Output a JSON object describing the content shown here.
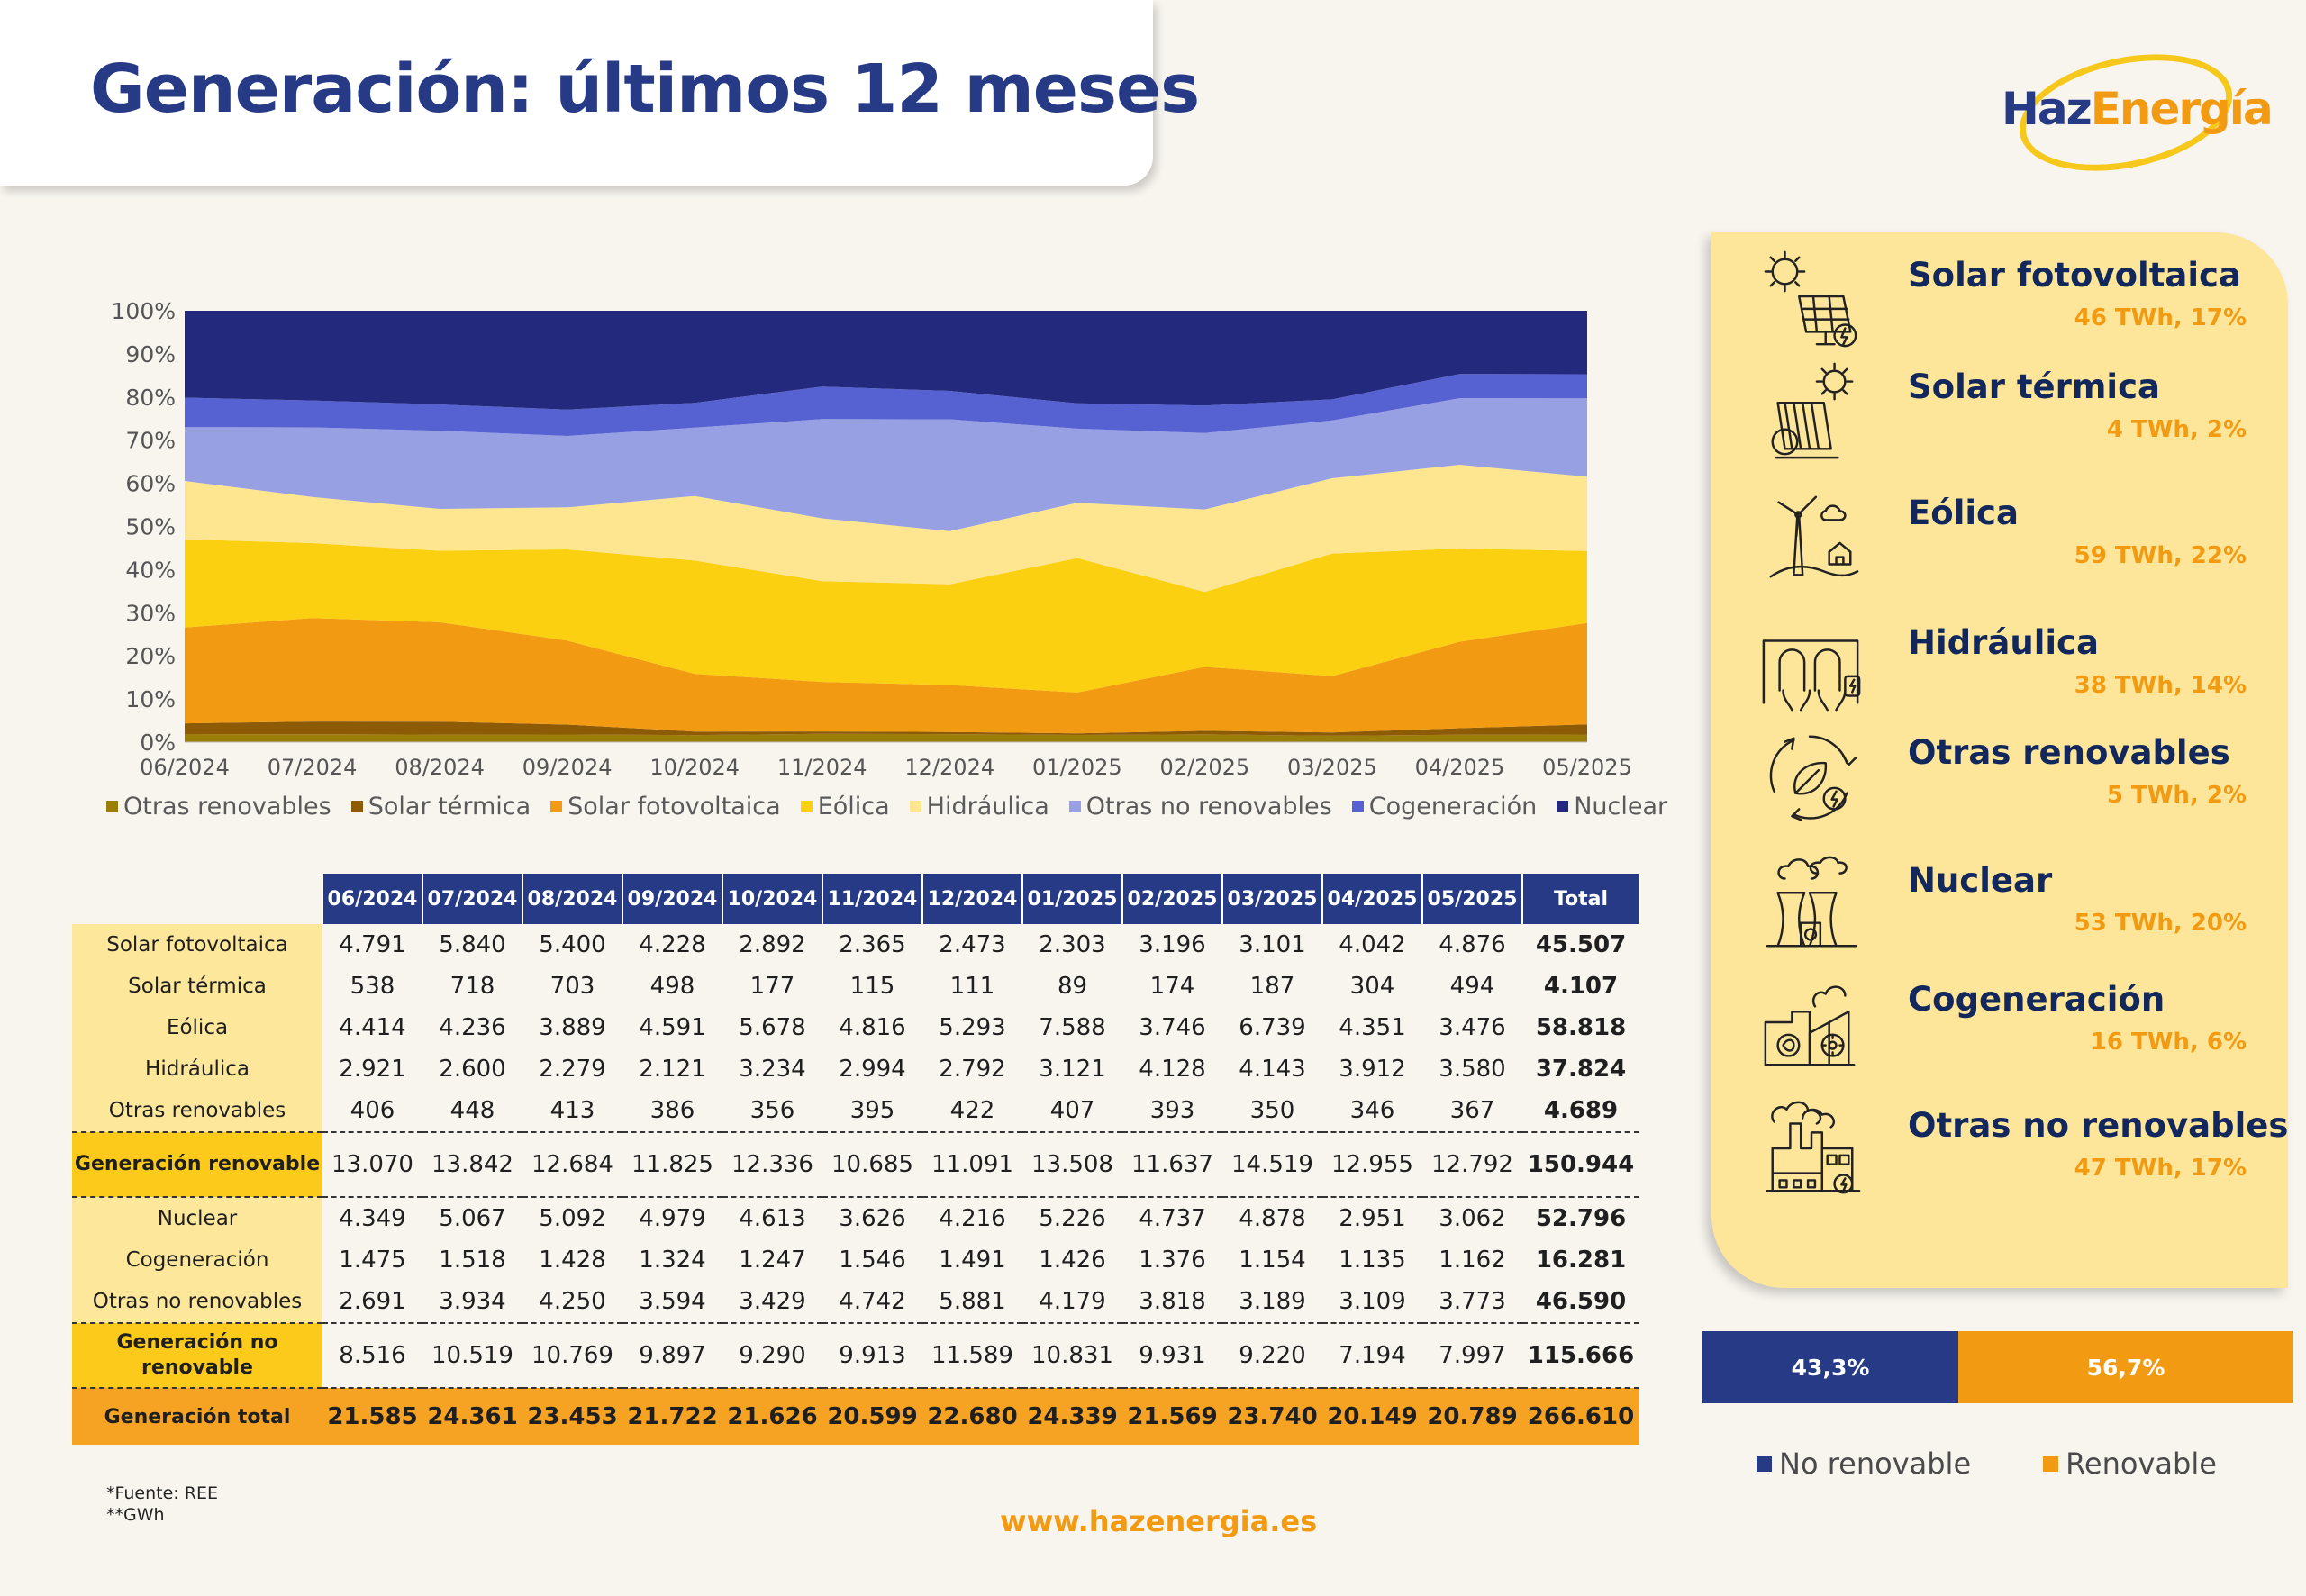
{
  "header": {
    "title": "Generación: últimos 12 meses"
  },
  "logo": {
    "part1": "Haz",
    "part2": "Energía"
  },
  "chart_data": {
    "type": "area",
    "stacked": "percent",
    "categories": [
      "06/2024",
      "07/2024",
      "08/2024",
      "09/2024",
      "10/2024",
      "11/2024",
      "12/2024",
      "01/2025",
      "02/2025",
      "03/2025",
      "04/2025",
      "05/2025"
    ],
    "ylim": [
      0,
      100
    ],
    "yticks": [
      "0%",
      "10%",
      "20%",
      "30%",
      "40%",
      "50%",
      "60%",
      "70%",
      "80%",
      "90%",
      "100%"
    ],
    "legend_position": "bottom",
    "series": [
      {
        "name": "Otras renovables",
        "color": "#9b7d0a",
        "values": [
          406,
          448,
          413,
          386,
          356,
          395,
          422,
          407,
          393,
          350,
          346,
          367
        ]
      },
      {
        "name": "Solar térmica",
        "color": "#8d5a06",
        "values": [
          538,
          718,
          703,
          498,
          177,
          115,
          111,
          89,
          174,
          187,
          304,
          494
        ]
      },
      {
        "name": "Solar fotovoltaica",
        "color": "#f39a13",
        "values": [
          4791,
          5840,
          5400,
          4228,
          2892,
          2365,
          2473,
          2303,
          3196,
          3101,
          4042,
          4876
        ]
      },
      {
        "name": "Eólica",
        "color": "#fbd011",
        "values": [
          4414,
          4236,
          3889,
          4591,
          5678,
          4816,
          5293,
          7588,
          3746,
          6739,
          4351,
          3476
        ]
      },
      {
        "name": "Hidráulica",
        "color": "#fde68f",
        "values": [
          2921,
          2600,
          2279,
          2121,
          3234,
          2994,
          2792,
          3121,
          4128,
          4143,
          3912,
          3580
        ]
      },
      {
        "name": "Otras no renovables",
        "color": "#96a0e2",
        "values": [
          2691,
          3934,
          4250,
          3594,
          3429,
          4742,
          5881,
          4179,
          3818,
          3189,
          3109,
          3773
        ]
      },
      {
        "name": "Cogeneración",
        "color": "#5762d2",
        "values": [
          1475,
          1518,
          1428,
          1324,
          1247,
          1546,
          1491,
          1426,
          1376,
          1154,
          1135,
          1162
        ]
      },
      {
        "name": "Nuclear",
        "color": "#232a7d",
        "values": [
          4349,
          5067,
          5092,
          4979,
          4613,
          3626,
          4216,
          5226,
          4737,
          4878,
          2951,
          3062
        ]
      }
    ]
  },
  "table": {
    "headers": [
      "06/2024",
      "07/2024",
      "08/2024",
      "09/2024",
      "10/2024",
      "11/2024",
      "12/2024",
      "01/2025",
      "02/2025",
      "03/2025",
      "04/2025",
      "05/2025",
      "Total"
    ],
    "rows": [
      {
        "label": "Solar fotovoltaica",
        "type": "item",
        "values": [
          "4.791",
          "5.840",
          "5.400",
          "4.228",
          "2.892",
          "2.365",
          "2.473",
          "2.303",
          "3.196",
          "3.101",
          "4.042",
          "4.876",
          "45.507"
        ]
      },
      {
        "label": "Solar térmica",
        "type": "item",
        "values": [
          "538",
          "718",
          "703",
          "498",
          "177",
          "115",
          "111",
          "89",
          "174",
          "187",
          "304",
          "494",
          "4.107"
        ]
      },
      {
        "label": "Eólica",
        "type": "item",
        "values": [
          "4.414",
          "4.236",
          "3.889",
          "4.591",
          "5.678",
          "4.816",
          "5.293",
          "7.588",
          "3.746",
          "6.739",
          "4.351",
          "3.476",
          "58.818"
        ]
      },
      {
        "label": "Hidráulica",
        "type": "item",
        "values": [
          "2.921",
          "2.600",
          "2.279",
          "2.121",
          "3.234",
          "2.994",
          "2.792",
          "3.121",
          "4.128",
          "4.143",
          "3.912",
          "3.580",
          "37.824"
        ]
      },
      {
        "label": "Otras renovables",
        "type": "item",
        "values": [
          "406",
          "448",
          "413",
          "386",
          "356",
          "395",
          "422",
          "407",
          "393",
          "350",
          "346",
          "367",
          "4.689"
        ]
      },
      {
        "label": "Generación renovable",
        "type": "sub",
        "values": [
          "13.070",
          "13.842",
          "12.684",
          "11.825",
          "12.336",
          "10.685",
          "11.091",
          "13.508",
          "11.637",
          "14.519",
          "12.955",
          "12.792",
          "150.944"
        ]
      },
      {
        "label": "Nuclear",
        "type": "item",
        "values": [
          "4.349",
          "5.067",
          "5.092",
          "4.979",
          "4.613",
          "3.626",
          "4.216",
          "5.226",
          "4.737",
          "4.878",
          "2.951",
          "3.062",
          "52.796"
        ]
      },
      {
        "label": "Cogeneración",
        "type": "item",
        "values": [
          "1.475",
          "1.518",
          "1.428",
          "1.324",
          "1.247",
          "1.546",
          "1.491",
          "1.426",
          "1.376",
          "1.154",
          "1.135",
          "1.162",
          "16.281"
        ]
      },
      {
        "label": "Otras no renovables",
        "type": "item",
        "values": [
          "2.691",
          "3.934",
          "4.250",
          "3.594",
          "3.429",
          "4.742",
          "5.881",
          "4.179",
          "3.818",
          "3.189",
          "3.109",
          "3.773",
          "46.590"
        ]
      },
      {
        "label": "Generación no renovable",
        "type": "sub",
        "values": [
          "8.516",
          "10.519",
          "10.769",
          "9.897",
          "9.290",
          "9.913",
          "11.589",
          "10.831",
          "9.931",
          "9.220",
          "7.194",
          "7.997",
          "115.666"
        ]
      },
      {
        "label": "Generación total",
        "type": "grand",
        "values": [
          "21.585",
          "24.361",
          "23.453",
          "21.722",
          "21.626",
          "20.599",
          "22.680",
          "24.339",
          "21.569",
          "23.740",
          "20.149",
          "20.789",
          "266.610"
        ]
      }
    ]
  },
  "technologies": [
    {
      "name": "Solar fotovoltaica",
      "value": "46 TWh, 17%",
      "icon": "solar-panel-icon"
    },
    {
      "name": "Solar térmica",
      "value": "4 TWh, 2%",
      "icon": "solar-thermal-icon"
    },
    {
      "name": "Eólica",
      "value": "59 TWh, 22%",
      "icon": "wind-turbine-icon"
    },
    {
      "name": "Hidráulica",
      "value": "38 TWh, 14%",
      "icon": "hydro-dam-icon"
    },
    {
      "name": "Otras renovables",
      "value": "5 TWh, 2%",
      "icon": "recycle-leaf-icon"
    },
    {
      "name": "Nuclear",
      "value": "53 TWh, 20%",
      "icon": "nuclear-plant-icon"
    },
    {
      "name": "Cogeneración",
      "value": "16 TWh, 6%",
      "icon": "cogeneration-icon"
    },
    {
      "name": "Otras no renovables",
      "value": "47 TWh, 17%",
      "icon": "factory-icon"
    }
  ],
  "split": {
    "segments": [
      {
        "name": "No renovable",
        "label": "43,3%",
        "value": 43.3,
        "color": "#263a86"
      },
      {
        "name": "Renovable",
        "label": "56,7%",
        "value": 56.7,
        "color": "#f39a13"
      }
    ]
  },
  "footnote": {
    "line1": "*Fuente: REE",
    "line2": "**GWh"
  },
  "website": "www.hazenergia.es"
}
